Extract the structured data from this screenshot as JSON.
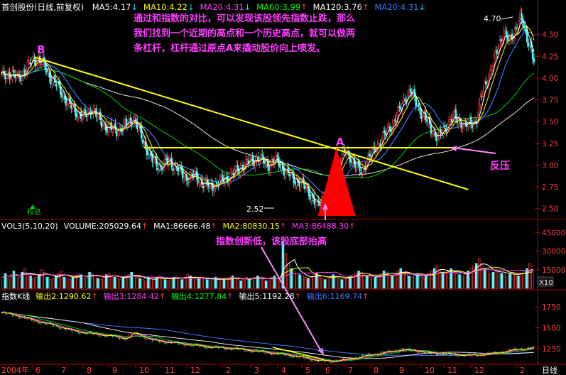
{
  "main_panel": {
    "stock_name": "首创股份(日线,前复权)",
    "ma_legend": [
      {
        "label": "MA5:4.17",
        "arrow": "↓",
        "color": "#ffffff"
      },
      {
        "label": "MA10:4.22",
        "arrow": "↓",
        "color": "#ffff00"
      },
      {
        "label": "MA20:4.31",
        "arrow": "↓",
        "color": "#ff3cff"
      },
      {
        "label": "MA60:3.99",
        "arrow": "↑",
        "color": "#00ff00"
      },
      {
        "label": "MA120:3.76",
        "arrow": "↑",
        "color": "#ffffff"
      },
      {
        "label": "MA20:4.31",
        "arrow": "↓",
        "color": "#3c78ff"
      }
    ],
    "annotation_text": [
      "通过和指数的对比，可以发现该股领先指数止跌，那么",
      "我们找到一个近期的高点和一个历史高点，就可以做两",
      "条杠杆，杠杆通过原点A来撬动股价向上喷发。"
    ],
    "labels": {
      "point_b": "B",
      "point_a": "A",
      "resistance": "反压",
      "high_price": "4.70",
      "low_price": "2.52",
      "ex_rights": "权息"
    }
  },
  "volume_panel": {
    "legend": [
      {
        "label": "VOL3(5,10,20)",
        "arrow": "",
        "color": "#ffffff"
      },
      {
        "label": "VOLUME:205029.64",
        "arrow": "↑",
        "color": "#ffffff"
      },
      {
        "label": "MA1:86666.48",
        "arrow": "↑",
        "color": "#ffffff"
      },
      {
        "label": "MA2:80830.15",
        "arrow": "↑",
        "color": "#ffff00"
      },
      {
        "label": "MA3:86488.30",
        "arrow": "↑",
        "color": "#ff3cff"
      }
    ],
    "annotation": "指数创新低，该股底部抬高",
    "unit_label": "X10"
  },
  "index_panel": {
    "legend": [
      {
        "label": "指数K线",
        "arrow": "",
        "color": "#ffffff"
      },
      {
        "label": "输出2:1290.62",
        "arrow": "↑",
        "color": "#ffff00"
      },
      {
        "label": "输出3:1284.42",
        "arrow": "↑",
        "color": "#ff3cff"
      },
      {
        "label": "输出4:1277.84",
        "arrow": "↑",
        "color": "#00ff00"
      },
      {
        "label": "输出5:1192.28",
        "arrow": "↑",
        "color": "#ffffff"
      },
      {
        "label": "输出6:1169.74",
        "arrow": "↑",
        "color": "#3c78ff"
      }
    ]
  },
  "x_axis": {
    "year_label": "2004年",
    "months": [
      "6",
      "7",
      "8",
      "9",
      "10",
      "11",
      "12",
      "2",
      "3",
      "4",
      "5",
      "6",
      "7",
      "8",
      "9",
      "10",
      "11",
      "12",
      "2"
    ],
    "period": "日线"
  },
  "chart_data": [
    {
      "type": "line",
      "title": "首创股份(日线,前复权)",
      "x_type": "trading-day index",
      "ylim": [
        2.4,
        4.75
      ],
      "y_ticks": [
        2.5,
        2.75,
        3.0,
        3.25,
        3.5,
        3.75,
        4.0,
        4.25,
        4.5
      ],
      "series": [
        {
          "name": "price",
          "points": [
            [
              0,
              4.02
            ],
            [
              6,
              4.05
            ],
            [
              12,
              4.0
            ],
            [
              18,
              4.1
            ],
            [
              22,
              4.2
            ],
            [
              26,
              4.22
            ],
            [
              31,
              4.15
            ],
            [
              36,
              4.0
            ],
            [
              42,
              3.88
            ],
            [
              48,
              3.72
            ],
            [
              54,
              3.62
            ],
            [
              60,
              3.55
            ],
            [
              66,
              3.65
            ],
            [
              72,
              3.5
            ],
            [
              78,
              3.42
            ],
            [
              84,
              3.4
            ],
            [
              90,
              3.45
            ],
            [
              96,
              3.55
            ],
            [
              100,
              3.4
            ],
            [
              104,
              3.25
            ],
            [
              110,
              3.05
            ],
            [
              116,
              2.98
            ],
            [
              122,
              3.05
            ],
            [
              128,
              2.96
            ],
            [
              134,
              2.85
            ],
            [
              140,
              2.88
            ],
            [
              146,
              2.8
            ],
            [
              152,
              2.75
            ],
            [
              158,
              2.8
            ],
            [
              164,
              2.85
            ],
            [
              170,
              2.92
            ],
            [
              176,
              3.0
            ],
            [
              182,
              3.05
            ],
            [
              188,
              3.08
            ],
            [
              194,
              3.0
            ],
            [
              200,
              3.06
            ],
            [
              206,
              2.95
            ],
            [
              212,
              2.85
            ],
            [
              218,
              2.8
            ],
            [
              224,
              2.7
            ],
            [
              230,
              2.52
            ],
            [
              236,
              2.68
            ],
            [
              242,
              2.85
            ],
            [
              246,
              3.05
            ],
            [
              250,
              3.15
            ],
            [
              254,
              3.1
            ],
            [
              258,
              3.0
            ],
            [
              262,
              2.92
            ],
            [
              266,
              3.05
            ],
            [
              272,
              3.18
            ],
            [
              278,
              3.32
            ],
            [
              284,
              3.45
            ],
            [
              290,
              3.62
            ],
            [
              294,
              3.78
            ],
            [
              298,
              3.85
            ],
            [
              302,
              3.72
            ],
            [
              306,
              3.6
            ],
            [
              310,
              3.5
            ],
            [
              314,
              3.4
            ],
            [
              318,
              3.3
            ],
            [
              322,
              3.4
            ],
            [
              326,
              3.5
            ],
            [
              330,
              3.55
            ],
            [
              334,
              3.5
            ],
            [
              338,
              3.45
            ],
            [
              342,
              3.48
            ],
            [
              346,
              3.52
            ],
            [
              350,
              3.8
            ],
            [
              354,
              4.0
            ],
            [
              358,
              4.15
            ],
            [
              362,
              4.35
            ],
            [
              366,
              4.55
            ],
            [
              370,
              4.4
            ],
            [
              374,
              4.55
            ],
            [
              378,
              4.7
            ],
            [
              382,
              4.5
            ],
            [
              386,
              4.35
            ],
            [
              388,
              4.17
            ]
          ]
        },
        {
          "name": "MA5",
          "value": 4.17
        },
        {
          "name": "MA10",
          "value": 4.22
        },
        {
          "name": "MA20",
          "value": 4.31
        },
        {
          "name": "MA60",
          "value": 3.99
        },
        {
          "name": "MA120",
          "value": 3.76
        }
      ],
      "annotations": [
        {
          "label": "B",
          "x": 24,
          "y": 4.24
        },
        {
          "label": "A",
          "x": 244,
          "y": 3.2
        },
        {
          "label": "4.70",
          "x": 378,
          "y": 4.7
        },
        {
          "label": "2.52",
          "x": 230,
          "y": 2.52
        },
        {
          "label": "反压",
          "y": 3.18
        }
      ],
      "lines": [
        {
          "name": "trendline-B-A",
          "from": [
            24,
            4.24
          ],
          "to": [
            340,
            2.72
          ]
        },
        {
          "name": "horizontal-resistance",
          "from": [
            104,
            3.2
          ],
          "to": [
            330,
            3.2
          ]
        }
      ],
      "grid": false,
      "legend": "top"
    },
    {
      "type": "bar",
      "title": "VOL3(5,10,20)",
      "ylim": [
        0,
        48000
      ],
      "y_ticks": [
        15000,
        30000,
        45000
      ],
      "y_unit": "X10",
      "values": [
        9000,
        12000,
        8000,
        11000,
        14000,
        10000,
        9000,
        13000,
        16000,
        12000,
        10000,
        8000,
        9000,
        11000,
        15000,
        13000,
        9000,
        7000,
        8000,
        10000,
        12000,
        14000,
        9000,
        8000,
        7000,
        9000,
        10000,
        12000,
        11000,
        8000,
        9000,
        13000,
        12000,
        10000,
        8000,
        7000,
        9000,
        11000,
        12000,
        10000,
        9000,
        8000,
        7000,
        9000,
        10000,
        11000,
        13000,
        10000,
        9000,
        8000,
        7000,
        6000,
        9000,
        8000,
        7000,
        9000,
        10000,
        8000,
        7000,
        6000,
        8000,
        9000,
        10000,
        8000,
        7000,
        9000,
        11000,
        10000,
        8000,
        7000,
        8000,
        9000,
        8000,
        7000,
        6000,
        8000,
        9000,
        7000,
        6000,
        7000,
        8000,
        9000,
        10000,
        8000,
        7000,
        6000,
        8000,
        9000,
        7000,
        8000,
        9000,
        10000,
        8000,
        7000,
        6000,
        8000,
        9000,
        10000,
        8000,
        7000,
        38000,
        28000,
        20000,
        16000,
        14000,
        12000,
        11000,
        10000,
        9000,
        8000,
        9000,
        11000,
        12000,
        10000,
        8000,
        7000,
        9000,
        10000,
        11000,
        9000,
        8000,
        7000,
        8000,
        9000,
        10000,
        11000,
        12000,
        14000,
        13000,
        11000,
        10000,
        9000,
        8000,
        9000,
        10000,
        12000,
        14000,
        13000,
        11000,
        10000,
        12000,
        14000,
        16000,
        13000,
        11000,
        10000,
        9000,
        11000,
        12000,
        10000,
        9000,
        10000,
        12000,
        14000,
        16000,
        18000,
        15000,
        13000,
        12000,
        14000,
        16000,
        13000,
        12000,
        11000,
        10000,
        12000,
        14000,
        16000,
        18000,
        20000,
        24000,
        20000,
        16000,
        14000,
        12000,
        13000,
        15000,
        14000,
        12000,
        11000,
        10000,
        12000,
        13000,
        11000,
        10000,
        12000,
        14000,
        16000,
        20000,
        15000
      ],
      "series": [
        {
          "name": "VOLUME",
          "value": 205029.64
        },
        {
          "name": "MA1",
          "value": 86666.48
        },
        {
          "name": "MA2",
          "value": 80830.15
        },
        {
          "name": "MA3",
          "value": 86488.3
        }
      ],
      "legend": "top"
    },
    {
      "type": "line",
      "title": "指数K线",
      "ylim": [
        1080,
        1820
      ],
      "y_ticks": [
        1250,
        1500,
        1750
      ],
      "series": [
        {
          "name": "index",
          "points": [
            [
              0,
              1680
            ],
            [
              10,
              1650
            ],
            [
              20,
              1600
            ],
            [
              30,
              1560
            ],
            [
              40,
              1520
            ],
            [
              50,
              1470
            ],
            [
              60,
              1440
            ],
            [
              70,
              1420
            ],
            [
              80,
              1400
            ],
            [
              90,
              1370
            ],
            [
              96,
              1440
            ],
            [
              102,
              1400
            ],
            [
              110,
              1350
            ],
            [
              120,
              1330
            ],
            [
              130,
              1310
            ],
            [
              140,
              1290
            ],
            [
              150,
              1270
            ],
            [
              160,
              1260
            ],
            [
              170,
              1250
            ],
            [
              180,
              1230
            ],
            [
              190,
              1210
            ],
            [
              200,
              1190
            ],
            [
              210,
              1170
            ],
            [
              220,
              1140
            ],
            [
              230,
              1110
            ],
            [
              240,
              1100
            ],
            [
              250,
              1120
            ],
            [
              260,
              1150
            ],
            [
              270,
              1180
            ],
            [
              280,
              1210
            ],
            [
              290,
              1240
            ],
            [
              300,
              1230
            ],
            [
              310,
              1200
            ],
            [
              320,
              1190
            ],
            [
              330,
              1180
            ],
            [
              340,
              1170
            ],
            [
              350,
              1180
            ],
            [
              360,
              1200
            ],
            [
              370,
              1230
            ],
            [
              380,
              1250
            ],
            [
              388,
              1262
            ]
          ]
        },
        {
          "name": "输出2",
          "value": 1290.62
        },
        {
          "name": "输出3",
          "value": 1284.42
        },
        {
          "name": "输出4",
          "value": 1277.84
        },
        {
          "name": "输出5",
          "value": 1192.28
        },
        {
          "name": "输出6",
          "value": 1169.74
        }
      ],
      "legend": "top"
    }
  ]
}
